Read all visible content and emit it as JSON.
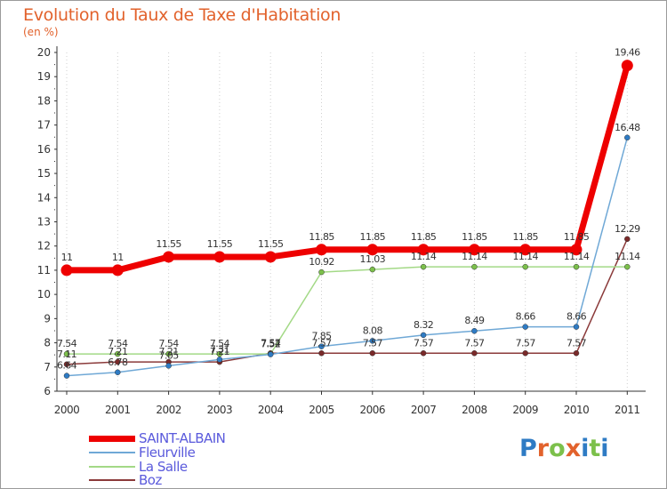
{
  "title": "Evolution du Taux de Taxe d'Habitation",
  "unit_label": "(en %)",
  "brand": {
    "letters": [
      "P",
      "r",
      "o",
      "x",
      "i",
      "t",
      "i"
    ],
    "colors": [
      "#2e7bc4",
      "#e2622c",
      "#7cc04b",
      "#e2622c",
      "#2e7bc4",
      "#7cc04b",
      "#2e7bc4"
    ]
  },
  "chart_data": {
    "type": "line",
    "title": "Evolution du Taux de Taxe d'Habitation",
    "xlabel": "",
    "ylabel": "(en %)",
    "ylim": [
      6,
      20
    ],
    "yticks": [
      "6",
      "7",
      "8",
      "9",
      "10",
      "11",
      "12",
      "13",
      "14",
      "15",
      "16",
      "17",
      "18",
      "19",
      "20"
    ],
    "categories": [
      "2000",
      "2001",
      "2002",
      "2003",
      "2004",
      "2005",
      "2006",
      "2007",
      "2008",
      "2009",
      "2010",
      "2011"
    ],
    "series": [
      {
        "name": "SAINT-ALBAIN",
        "color": "#ee0000",
        "marker_color": "#ee0000",
        "values": [
          11,
          11,
          11.55,
          11.55,
          11.55,
          11.85,
          11.85,
          11.85,
          11.85,
          11.85,
          11.85,
          19.46
        ],
        "labels": [
          "11",
          "11",
          "11.55",
          "11.55",
          "11.55",
          "11.85",
          "11.85",
          "11.85",
          "11.85",
          "11.85",
          "11.85",
          "19.46"
        ]
      },
      {
        "name": "Fleurville",
        "color": "#6fa8d6",
        "marker_color": "#2e7bc4",
        "values": [
          6.64,
          6.78,
          7.05,
          7.31,
          7.52,
          7.85,
          8.08,
          8.32,
          8.49,
          8.66,
          8.66,
          16.48
        ],
        "labels": [
          "6.64",
          "6.78",
          "7.05",
          "7.31",
          "7.52",
          "7.85",
          "8.08",
          "8.32",
          "8.49",
          "8.66",
          "8.66",
          "16.48"
        ]
      },
      {
        "name": "La Salle",
        "color": "#a3d986",
        "marker_color": "#7cc04b",
        "values": [
          7.54,
          7.54,
          7.54,
          7.54,
          7.54,
          10.92,
          11.03,
          11.14,
          11.14,
          11.14,
          11.14,
          11.14
        ],
        "labels": [
          "7.54",
          "7.54",
          "7.54",
          "7.54",
          "7.54",
          "10.92",
          "11.03",
          "11.14",
          "11.14",
          "11.14",
          "11.14",
          "11.14"
        ]
      },
      {
        "name": "Boz",
        "color": "#8b3a3a",
        "marker_color": "#7a2a2a",
        "values": [
          7.11,
          7.21,
          7.21,
          7.21,
          7.57,
          7.57,
          7.57,
          7.57,
          7.57,
          7.57,
          7.57,
          12.29
        ],
        "labels": [
          "7.11",
          "7.21",
          "7.21",
          "7.21",
          "7.57",
          "7.57",
          "7.57",
          "7.57",
          "7.57",
          "7.57",
          "7.57",
          "12.29"
        ]
      }
    ],
    "legend_position": "bottom-left"
  }
}
